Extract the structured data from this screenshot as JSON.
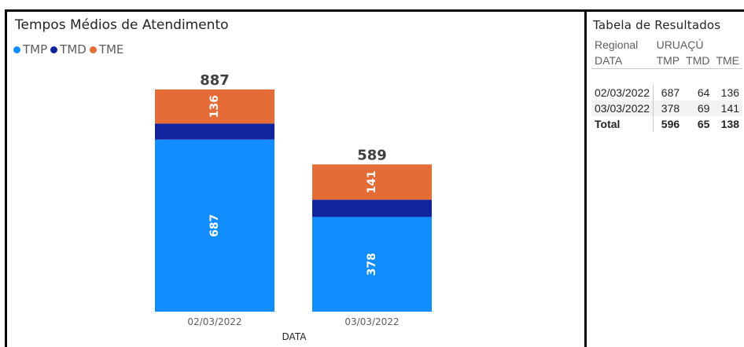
{
  "chart": {
    "title": "Tempos Médios de Atendimento",
    "legend": [
      {
        "name": "TMP",
        "color": "#118dff"
      },
      {
        "name": "TMD",
        "color": "#12239e"
      },
      {
        "name": "TME",
        "color": "#e66c37"
      }
    ]
  },
  "chart_data": {
    "type": "bar",
    "stacked": true,
    "title": "Tempos Médios de Atendimento",
    "xlabel": "DATA",
    "ylabel": "",
    "categories": [
      "02/03/2022",
      "03/03/2022"
    ],
    "series": [
      {
        "name": "TMP",
        "values": [
          687,
          378
        ],
        "color": "#118dff"
      },
      {
        "name": "TMD",
        "values": [
          64,
          69
        ],
        "color": "#12239e"
      },
      {
        "name": "TME",
        "values": [
          136,
          141
        ],
        "color": "#e66c37"
      }
    ],
    "totals": [
      887,
      589
    ],
    "legend_position": "top-left",
    "grid": false
  },
  "table": {
    "title": "Tabela de Resultados",
    "regional_label": "Regional",
    "regional_value": "URUAÇÚ",
    "date_label": "DATA",
    "columns": [
      "TMP",
      "TMD",
      "TME"
    ],
    "rows": [
      {
        "date": "02/03/2022",
        "values": [
          "687",
          "64",
          "136"
        ]
      },
      {
        "date": "03/03/2022",
        "values": [
          "378",
          "69",
          "141"
        ]
      }
    ],
    "total": {
      "label": "Total",
      "values": [
        "596",
        "65",
        "138"
      ]
    }
  }
}
